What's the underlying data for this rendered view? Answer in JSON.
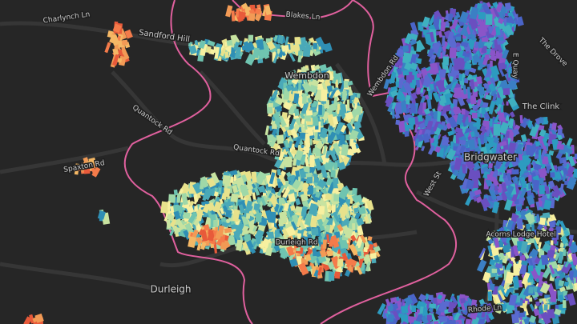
{
  "labels": [
    {
      "text": "Charlynch Ln"
    },
    {
      "text": "Sandford Hill"
    },
    {
      "text": "Blakes Ln"
    },
    {
      "text": "Wembdon"
    },
    {
      "text": "Quantock Rd"
    },
    {
      "text": "Quantock Rd"
    },
    {
      "text": "Spaxton Rd"
    },
    {
      "text": "Bridgwater"
    },
    {
      "text": "The Clink"
    },
    {
      "text": "The Drove"
    },
    {
      "text": "E Quay"
    },
    {
      "text": "Durleigh"
    },
    {
      "text": "Durleigh Rd"
    },
    {
      "text": "Acorns Lodge Hotel"
    },
    {
      "text": "Rhode Ln"
    },
    {
      "text": "West St"
    },
    {
      "text": "Wembdon Rd"
    }
  ]
}
